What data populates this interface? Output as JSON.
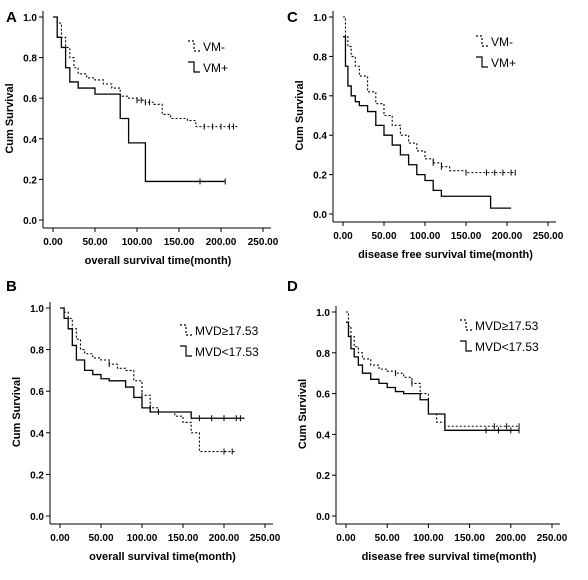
{
  "chart_data": [
    {
      "type": "line",
      "panel": "A",
      "xlabel": "overall survival time(month)",
      "ylabel": "Cum Survival",
      "xlim": [
        0,
        250
      ],
      "ylim": [
        0,
        1.0
      ],
      "xticks": [
        "0.00",
        "50.00",
        "100.00",
        "150.00",
        "200.00",
        "250.00"
      ],
      "yticks": [
        "0.0",
        "0.2",
        "0.4",
        "0.6",
        "0.8",
        "1.0"
      ],
      "legend_position": "top-right",
      "series": [
        {
          "name": "VM-",
          "style": "dashed",
          "x": [
            0,
            5,
            10,
            15,
            20,
            25,
            30,
            40,
            50,
            60,
            70,
            80,
            90,
            100,
            110,
            120,
            130,
            140,
            150,
            160,
            170,
            220
          ],
          "y": [
            1.0,
            0.97,
            0.9,
            0.85,
            0.8,
            0.75,
            0.72,
            0.7,
            0.69,
            0.67,
            0.65,
            0.61,
            0.6,
            0.59,
            0.58,
            0.57,
            0.52,
            0.5,
            0.5,
            0.49,
            0.46,
            0.46
          ],
          "censor_x": [
            100,
            105,
            110,
            115,
            180,
            190,
            200,
            210,
            215
          ]
        },
        {
          "name": "VM+",
          "style": "solid",
          "x": [
            0,
            5,
            10,
            15,
            20,
            30,
            50,
            80,
            90,
            100,
            110,
            205
          ],
          "y": [
            1.0,
            0.9,
            0.85,
            0.75,
            0.68,
            0.65,
            0.62,
            0.5,
            0.38,
            0.38,
            0.19,
            0.19
          ],
          "censor_x": [
            175,
            205
          ]
        }
      ]
    },
    {
      "type": "line",
      "panel": "C",
      "xlabel": "disease free survival time(month)",
      "ylabel": "Cum Survival",
      "xlim": [
        0,
        250
      ],
      "ylim": [
        0,
        1.0
      ],
      "xticks": [
        "0.00",
        "50.00",
        "100.00",
        "150.00",
        "200.00",
        "250.00"
      ],
      "yticks": [
        "0.0",
        "0.2",
        "0.4",
        "0.6",
        "0.8",
        "1.0"
      ],
      "legend_position": "top-right",
      "series": [
        {
          "name": "VM-",
          "style": "dashed",
          "x": [
            0,
            3,
            6,
            10,
            15,
            20,
            30,
            40,
            50,
            60,
            70,
            80,
            90,
            100,
            110,
            120,
            130,
            150,
            210
          ],
          "y": [
            1.0,
            0.9,
            0.85,
            0.8,
            0.75,
            0.7,
            0.62,
            0.56,
            0.5,
            0.45,
            0.4,
            0.36,
            0.32,
            0.28,
            0.26,
            0.24,
            0.22,
            0.21,
            0.21
          ],
          "censor_x": [
            110,
            120,
            150,
            175,
            185,
            195,
            205,
            210
          ]
        },
        {
          "name": "VM+",
          "style": "solid",
          "x": [
            0,
            3,
            6,
            10,
            15,
            20,
            30,
            40,
            50,
            60,
            70,
            80,
            90,
            100,
            110,
            120,
            150,
            180,
            205
          ],
          "y": [
            0.9,
            0.75,
            0.65,
            0.6,
            0.57,
            0.55,
            0.52,
            0.45,
            0.4,
            0.35,
            0.3,
            0.25,
            0.2,
            0.17,
            0.12,
            0.09,
            0.09,
            0.03,
            0.03
          ],
          "censor_x": []
        }
      ]
    },
    {
      "type": "line",
      "panel": "B",
      "xlabel": "overall survival time(month)",
      "ylabel": "Cum Survival",
      "xlim": [
        0,
        250
      ],
      "ylim": [
        0,
        1.0
      ],
      "xticks": [
        "0.00",
        "50.00",
        "100.00",
        "150.00",
        "200.00",
        "250.00"
      ],
      "yticks": [
        "0.0",
        "0.2",
        "0.4",
        "0.6",
        "0.8",
        "1.0"
      ],
      "legend_position": "top-right",
      "series": [
        {
          "name": "MVD≥17.53",
          "style": "dashed",
          "x": [
            0,
            5,
            10,
            15,
            20,
            25,
            30,
            40,
            50,
            60,
            70,
            80,
            90,
            100,
            110,
            120,
            130,
            140,
            150,
            160,
            170,
            200,
            215
          ],
          "y": [
            1.0,
            0.98,
            0.95,
            0.9,
            0.85,
            0.8,
            0.78,
            0.76,
            0.75,
            0.73,
            0.71,
            0.7,
            0.65,
            0.58,
            0.52,
            0.5,
            0.5,
            0.48,
            0.45,
            0.4,
            0.31,
            0.31,
            0.31
          ],
          "censor_x": [
            60,
            100,
            110,
            120,
            200,
            210
          ]
        },
        {
          "name": "MVD<17.53",
          "style": "solid",
          "x": [
            0,
            5,
            10,
            15,
            20,
            30,
            40,
            50,
            60,
            70,
            80,
            90,
            100,
            110,
            120,
            160,
            225
          ],
          "y": [
            1.0,
            0.95,
            0.9,
            0.82,
            0.75,
            0.7,
            0.68,
            0.66,
            0.65,
            0.65,
            0.62,
            0.57,
            0.52,
            0.5,
            0.5,
            0.47,
            0.47
          ],
          "censor_x": [
            170,
            185,
            200,
            215,
            220
          ]
        }
      ]
    },
    {
      "type": "line",
      "panel": "D",
      "xlabel": "disease free survival time(month)",
      "ylabel": "Cum Survival",
      "xlim": [
        0,
        250
      ],
      "ylim": [
        0,
        1.0
      ],
      "xticks": [
        "0.00",
        "50.00",
        "100.00",
        "150.00",
        "200.00",
        "250.00"
      ],
      "yticks": [
        "0.0",
        "0.2",
        "0.4",
        "0.6",
        "0.8",
        "1.0"
      ],
      "legend_position": "top-right",
      "series": [
        {
          "name": "MVD≥17.53",
          "style": "dashed",
          "x": [
            0,
            3,
            6,
            10,
            15,
            20,
            30,
            40,
            50,
            60,
            70,
            80,
            90,
            100,
            110,
            120,
            210
          ],
          "y": [
            1.0,
            0.93,
            0.88,
            0.83,
            0.8,
            0.77,
            0.74,
            0.72,
            0.71,
            0.7,
            0.68,
            0.65,
            0.6,
            0.5,
            0.46,
            0.44,
            0.44
          ],
          "censor_x": [
            60,
            80,
            180,
            195,
            210
          ]
        },
        {
          "name": "MVD<17.53",
          "style": "solid",
          "x": [
            0,
            3,
            6,
            10,
            15,
            20,
            30,
            40,
            50,
            60,
            70,
            80,
            90,
            100,
            120,
            210
          ],
          "y": [
            0.95,
            0.88,
            0.82,
            0.78,
            0.74,
            0.7,
            0.67,
            0.65,
            0.63,
            0.61,
            0.6,
            0.6,
            0.57,
            0.5,
            0.42,
            0.42
          ],
          "censor_x": [
            170,
            185,
            200,
            210
          ]
        }
      ]
    }
  ]
}
